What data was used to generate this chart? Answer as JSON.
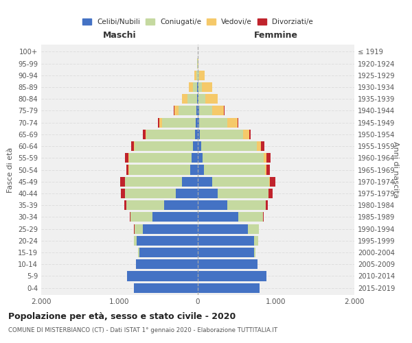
{
  "age_groups": [
    "0-4",
    "5-9",
    "10-14",
    "15-19",
    "20-24",
    "25-29",
    "30-34",
    "35-39",
    "40-44",
    "45-49",
    "50-54",
    "55-59",
    "60-64",
    "65-69",
    "70-74",
    "75-79",
    "80-84",
    "85-89",
    "90-94",
    "95-99",
    "100+"
  ],
  "birth_years": [
    "2015-2019",
    "2010-2014",
    "2005-2009",
    "2000-2004",
    "1995-1999",
    "1990-1994",
    "1985-1989",
    "1980-1984",
    "1975-1979",
    "1970-1974",
    "1965-1969",
    "1960-1964",
    "1955-1959",
    "1950-1954",
    "1945-1949",
    "1940-1944",
    "1935-1939",
    "1930-1934",
    "1925-1929",
    "1920-1924",
    "≤ 1919"
  ],
  "male": {
    "celibi": [
      820,
      900,
      790,
      750,
      780,
      700,
      580,
      430,
      280,
      200,
      100,
      80,
      60,
      35,
      25,
      15,
      10,
      5,
      0,
      0,
      0
    ],
    "coniugati": [
      0,
      0,
      2,
      10,
      40,
      110,
      280,
      480,
      650,
      730,
      780,
      800,
      750,
      620,
      430,
      230,
      120,
      55,
      20,
      5,
      0
    ],
    "vedovi": [
      0,
      0,
      0,
      0,
      0,
      0,
      0,
      1,
      1,
      2,
      2,
      2,
      5,
      15,
      35,
      55,
      70,
      50,
      20,
      5,
      0
    ],
    "divorziati": [
      0,
      0,
      0,
      0,
      0,
      2,
      10,
      25,
      50,
      60,
      30,
      45,
      40,
      30,
      15,
      5,
      2,
      0,
      0,
      0,
      0
    ]
  },
  "female": {
    "nubili": [
      790,
      880,
      760,
      720,
      720,
      640,
      520,
      380,
      250,
      180,
      80,
      65,
      45,
      25,
      15,
      15,
      10,
      5,
      0,
      0,
      0
    ],
    "coniugate": [
      0,
      0,
      2,
      15,
      55,
      140,
      310,
      490,
      650,
      730,
      780,
      780,
      710,
      550,
      360,
      170,
      90,
      45,
      15,
      2,
      0
    ],
    "vedove": [
      0,
      0,
      0,
      0,
      0,
      0,
      1,
      2,
      5,
      10,
      15,
      30,
      50,
      80,
      130,
      150,
      150,
      130,
      70,
      10,
      0
    ],
    "divorziate": [
      0,
      0,
      0,
      0,
      0,
      5,
      10,
      25,
      50,
      70,
      50,
      55,
      50,
      20,
      10,
      5,
      2,
      0,
      0,
      0,
      0
    ]
  },
  "colors": {
    "celibi": "#4472C4",
    "coniugati": "#C5D9A0",
    "vedovi": "#F5C96A",
    "divorziati": "#C0232C"
  },
  "xlim": 2000,
  "title": "Popolazione per età, sesso e stato civile - 2020",
  "subtitle": "COMUNE DI MISTERBIANCO (CT) - Dati ISTAT 1° gennaio 2020 - Elaborazione TUTTITALIA.IT",
  "xlabel_left": "Maschi",
  "xlabel_right": "Femmine",
  "ylabel_left": "Fasce di età",
  "ylabel_right": "Anni di nascita",
  "legend_labels": [
    "Celibi/Nubili",
    "Coniugati/e",
    "Vedovi/e",
    "Divorziati/e"
  ],
  "background_color": "#ffffff",
  "plot_bg_color": "#f0f0f0",
  "grid_color": "#dddddd"
}
